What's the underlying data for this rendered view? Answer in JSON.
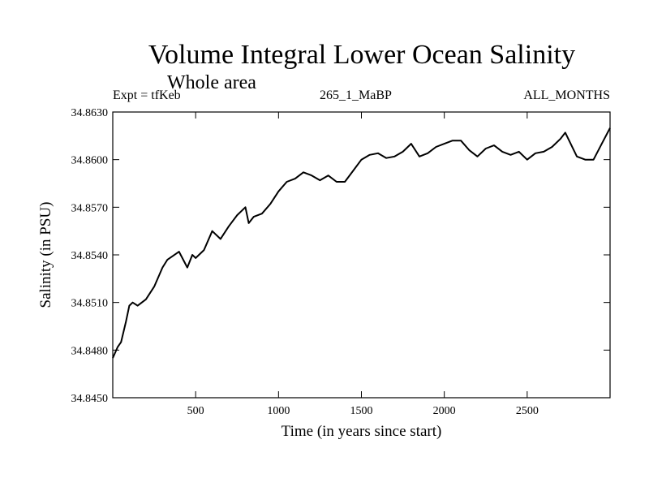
{
  "chart_data": {
    "type": "line",
    "title": "Volume Integral Lower Ocean Salinity",
    "subtitle": "Whole area",
    "header_left": "Expt = tfKeb",
    "header_center": "265_1_MaBP",
    "header_right": "ALL_MONTHS",
    "xlabel": "Time (in years since start)",
    "ylabel": "Salinity (in PSU)",
    "xlim": [
      0,
      3000
    ],
    "ylim": [
      34.845,
      34.863
    ],
    "xticks": [
      500,
      1000,
      1500,
      2000,
      2500
    ],
    "xtick_labels": [
      "500",
      "1000",
      "1500",
      "2000",
      "2500"
    ],
    "yticks": [
      34.845,
      34.848,
      34.851,
      34.854,
      34.857,
      34.86,
      34.863
    ],
    "ytick_labels": [
      "34.8450",
      "34.8480",
      "34.8510",
      "34.8540",
      "34.8570",
      "34.8600",
      "34.8630"
    ],
    "grid": false,
    "series": [
      {
        "color": "#000000",
        "x": [
          0,
          30,
          50,
          80,
          100,
          120,
          150,
          200,
          250,
          300,
          330,
          400,
          450,
          480,
          500,
          550,
          600,
          650,
          700,
          750,
          800,
          820,
          850,
          900,
          950,
          1000,
          1050,
          1100,
          1150,
          1200,
          1250,
          1300,
          1350,
          1400,
          1450,
          1500,
          1550,
          1600,
          1650,
          1700,
          1750,
          1800,
          1850,
          1900,
          1950,
          2000,
          2050,
          2100,
          2150,
          2200,
          2250,
          2300,
          2350,
          2400,
          2450,
          2500,
          2550,
          2600,
          2650,
          2700,
          2730,
          2800,
          2850,
          2900,
          2950,
          3000
        ],
        "y": [
          34.8475,
          34.8482,
          34.8485,
          34.8498,
          34.8508,
          34.851,
          34.8508,
          34.8512,
          34.852,
          34.8532,
          34.8537,
          34.8542,
          34.8532,
          34.854,
          34.8538,
          34.8543,
          34.8555,
          34.855,
          34.8558,
          34.8565,
          34.857,
          34.856,
          34.8564,
          34.8566,
          34.8572,
          34.858,
          34.8586,
          34.8588,
          34.8592,
          34.859,
          34.8587,
          34.859,
          34.8586,
          34.8586,
          34.8593,
          34.86,
          34.8603,
          34.8604,
          34.8601,
          34.8602,
          34.8605,
          34.861,
          34.8602,
          34.8604,
          34.8608,
          34.861,
          34.8612,
          34.8612,
          34.8606,
          34.8602,
          34.8607,
          34.8609,
          34.8605,
          34.8603,
          34.8605,
          34.86,
          34.8604,
          34.8605,
          34.8608,
          34.8613,
          34.8617,
          34.8602,
          34.86,
          34.86,
          34.861,
          34.862
        ]
      }
    ]
  }
}
